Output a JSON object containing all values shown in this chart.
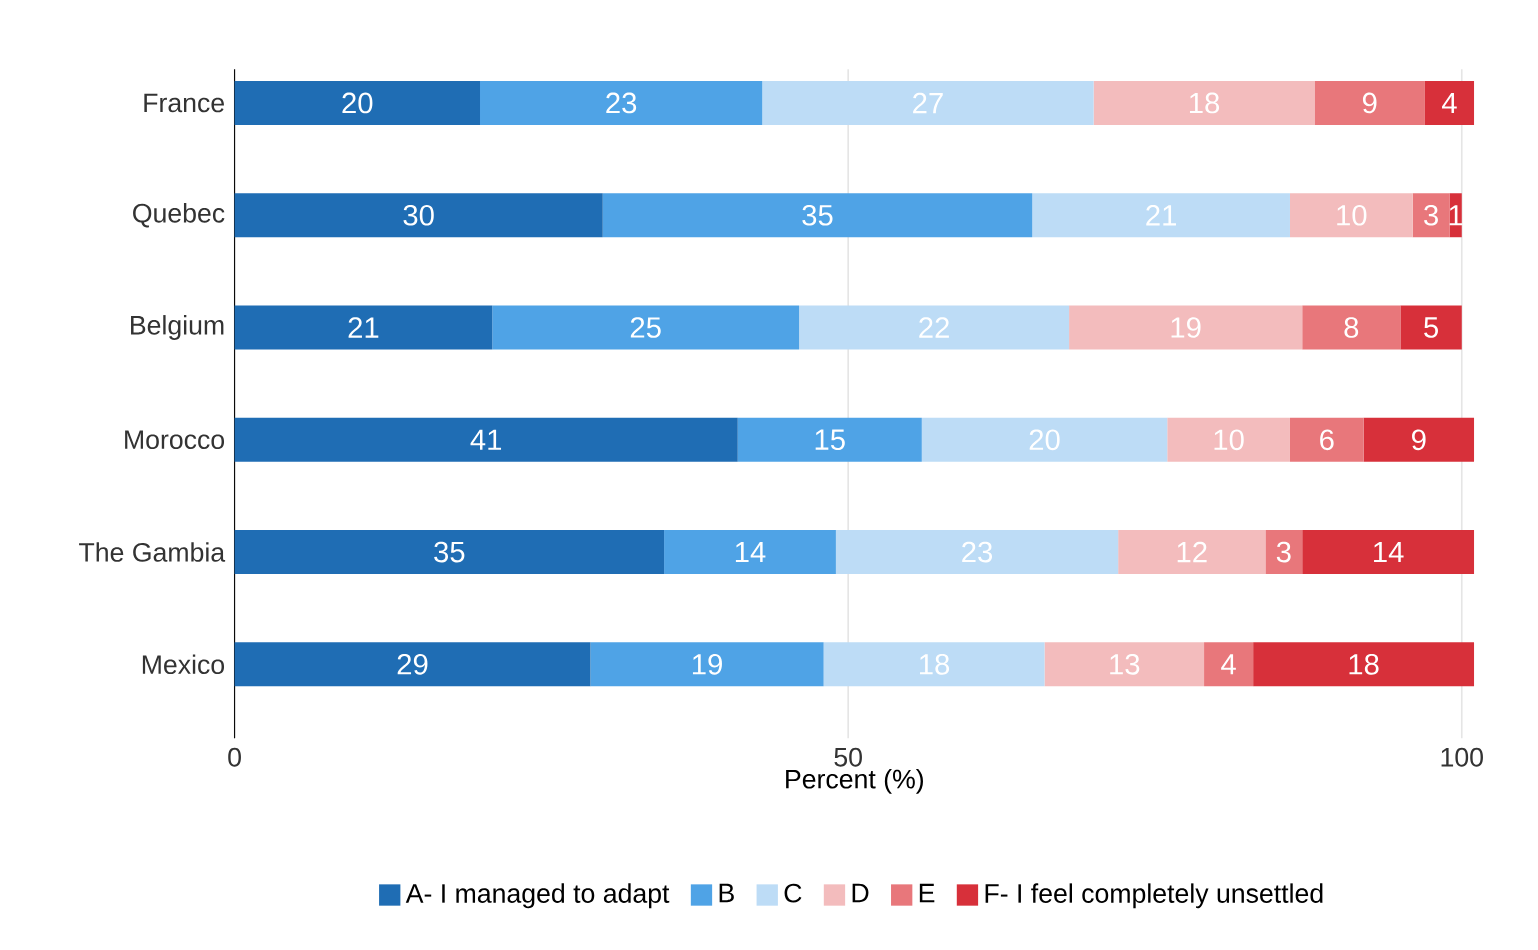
{
  "chart_data": {
    "type": "bar",
    "orientation": "horizontal",
    "stacked": true,
    "xlabel": "Percent (%)",
    "categories": [
      "France",
      "Quebec",
      "Belgium",
      "Morocco",
      "The Gambia",
      "Mexico"
    ],
    "series": [
      {
        "name": "A- I managed to adapt",
        "color": "#1f6db4",
        "values": [
          20,
          30,
          21,
          41,
          35,
          29
        ]
      },
      {
        "name": "B",
        "color": "#4fa3e6",
        "values": [
          23,
          35,
          25,
          15,
          14,
          19
        ]
      },
      {
        "name": "C",
        "color": "#bddcf6",
        "values": [
          27,
          21,
          22,
          20,
          23,
          18
        ]
      },
      {
        "name": "D",
        "color": "#f3bcbd",
        "values": [
          18,
          10,
          19,
          10,
          12,
          13
        ]
      },
      {
        "name": "E",
        "color": "#e8777b",
        "values": [
          9,
          3,
          8,
          6,
          3,
          4
        ]
      },
      {
        "name": "F- I feel completely unsettled",
        "color": "#d7303a",
        "values": [
          4,
          1,
          5,
          9,
          14,
          18
        ]
      }
    ],
    "xlim": [
      0,
      101
    ],
    "xticks": [
      0,
      50,
      100
    ],
    "grid": "x",
    "legend": "bottom",
    "data_labels": true
  }
}
